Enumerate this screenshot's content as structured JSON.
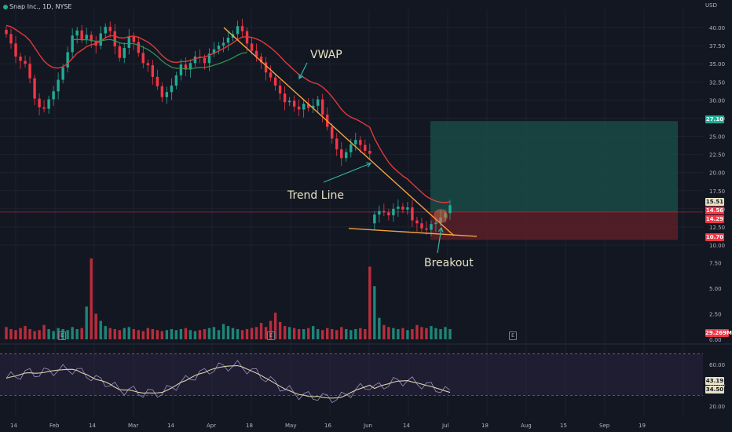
{
  "header": {
    "symbol": "Snap Inc., 1D, NYSE",
    "currency": "USD"
  },
  "colors": {
    "up": "#22ab94",
    "down": "#f23645",
    "bg": "#131722",
    "trend": "#f5a23c",
    "vwap_band": "#e03a3a",
    "vwap_mid": "#2e9a52"
  },
  "annotations": {
    "vwap": "VWAP",
    "trend": "Trend Line",
    "breakout": "Breakout"
  },
  "price_tags": [
    {
      "label": "27.10",
      "bg": "#22ab94",
      "fg": "#ffffff"
    },
    {
      "label": "15.51",
      "bg": "#e8e3c4",
      "fg": "#131722"
    },
    {
      "label": "14.56",
      "bg": "#f23645",
      "fg": "#ffffff"
    },
    {
      "label": "14.29",
      "bg": "#f23645",
      "fg": "#ffffff"
    },
    {
      "label": "10.70",
      "bg": "#f23645",
      "fg": "#ffffff"
    }
  ],
  "volume_tag": {
    "label": "29.269M",
    "bg": "#f23645",
    "fg": "#ffffff"
  },
  "rsi_tags": [
    {
      "label": "43.19",
      "bg": "#e8e3c4",
      "fg": "#131722"
    },
    {
      "label": "34.50",
      "bg": "#e8e3c4",
      "fg": "#131722"
    }
  ],
  "event_marker": "E",
  "chart_data": {
    "type": "candlestick",
    "price_axis": {
      "ylim": [
        10.0,
        42.5
      ],
      "ticks": [
        "40.00",
        "37.50",
        "35.00",
        "32.50",
        "30.00",
        "27.50",
        "25.00",
        "22.50",
        "20.00",
        "17.50",
        "15.00",
        "12.50",
        "10.00"
      ]
    },
    "volume_axis": {
      "ylim": [
        0,
        8.75
      ],
      "ticks": [
        "7.50",
        "5.00",
        "2.50",
        "0.00"
      ]
    },
    "rsi_axis": {
      "ylim": [
        10,
        75
      ],
      "ticks": [
        "60.00",
        "40.00",
        "20.00"
      ],
      "bands": [
        30,
        70
      ]
    },
    "x_ticks": [
      "14",
      "Feb",
      "14",
      "Mar",
      "14",
      "Apr",
      "18",
      "May",
      "16",
      "Jun",
      "14",
      "Jul",
      "18",
      "Aug",
      "15",
      "Sep",
      "19"
    ],
    "trade_box": {
      "entry": 14.56,
      "target": 27.1,
      "stop": 10.7
    },
    "trend_line": {
      "start": 40.0,
      "end": 11.3
    },
    "support_line": {
      "start": 12.3,
      "end": 11.2
    },
    "closes": [
      39.1,
      37.8,
      36.0,
      35.4,
      35.0,
      33.0,
      30.2,
      29.0,
      28.8,
      30.1,
      31.2,
      32.8,
      34.5,
      36.6,
      38.9,
      39.6,
      38.4,
      39.0,
      38.1,
      37.5,
      39.2,
      40.1,
      39.5,
      37.4,
      35.8,
      37.2,
      38.8,
      38.0,
      36.5,
      35.1,
      34.8,
      33.2,
      31.9,
      30.4,
      31.1,
      32.0,
      33.4,
      34.9,
      34.2,
      35.1,
      36.0,
      35.8,
      35.1,
      36.4,
      37.0,
      37.5,
      37.9,
      38.6,
      39.1,
      40.2,
      39.5,
      37.8,
      36.8,
      36.0,
      35.2,
      33.8,
      33.1,
      32.0,
      30.9,
      29.7,
      29.9,
      29.1,
      28.7,
      29.5,
      28.9,
      29.2,
      30.1,
      28.0,
      26.3,
      24.7,
      23.2,
      22.0,
      22.8,
      23.9,
      24.5,
      23.8,
      23.0,
      22.6,
      14.2,
      14.7,
      14.5,
      14.1,
      15.0,
      15.3,
      14.9,
      15.2,
      13.4,
      13.0,
      12.3,
      12.1,
      12.9,
      13.1,
      13.8,
      14.4,
      15.5
    ],
    "volumes": [
      1.2,
      1.0,
      0.9,
      1.1,
      1.3,
      1.0,
      0.8,
      0.9,
      1.4,
      1.0,
      0.8,
      1.1,
      1.0,
      0.9,
      1.2,
      1.0,
      1.1,
      3.2,
      7.9,
      2.5,
      1.8,
      1.3,
      1.1,
      1.0,
      0.9,
      1.1,
      1.2,
      1.0,
      0.9,
      0.8,
      1.1,
      1.0,
      0.9,
      0.8,
      0.9,
      1.0,
      0.9,
      1.0,
      1.1,
      0.9,
      0.8,
      0.9,
      1.0,
      1.1,
      1.2,
      0.9,
      1.5,
      1.3,
      1.1,
      1.0,
      0.9,
      1.0,
      1.1,
      1.2,
      1.6,
      1.2,
      1.8,
      2.6,
      1.7,
      1.3,
      1.2,
      1.1,
      1.0,
      1.0,
      1.1,
      1.3,
      1.0,
      0.9,
      1.1,
      1.0,
      0.9,
      1.2,
      1.0,
      0.9,
      1.0,
      1.1,
      1.0,
      7.1,
      5.2,
      2.1,
      1.4,
      1.2,
      1.1,
      1.0,
      1.1,
      0.9,
      1.0,
      1.4,
      1.2,
      1.1,
      1.3,
      1.1,
      1.0,
      1.2,
      1.0
    ]
  }
}
